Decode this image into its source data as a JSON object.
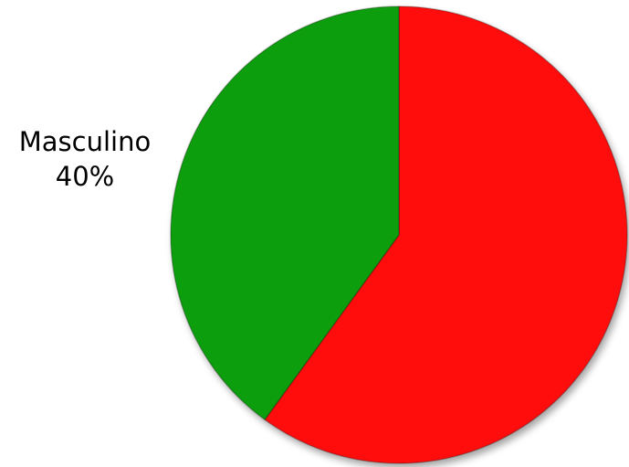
{
  "chart_data": {
    "type": "pie",
    "title": "",
    "slices": [
      {
        "name": "",
        "value": 60,
        "color": "#ff1111",
        "data_label": ""
      },
      {
        "name": "Masculino",
        "value": 40,
        "color": "#0b9e0b",
        "data_label": "40%"
      }
    ],
    "start_angle_deg": 0,
    "direction": "clockwise",
    "legend": "none"
  }
}
